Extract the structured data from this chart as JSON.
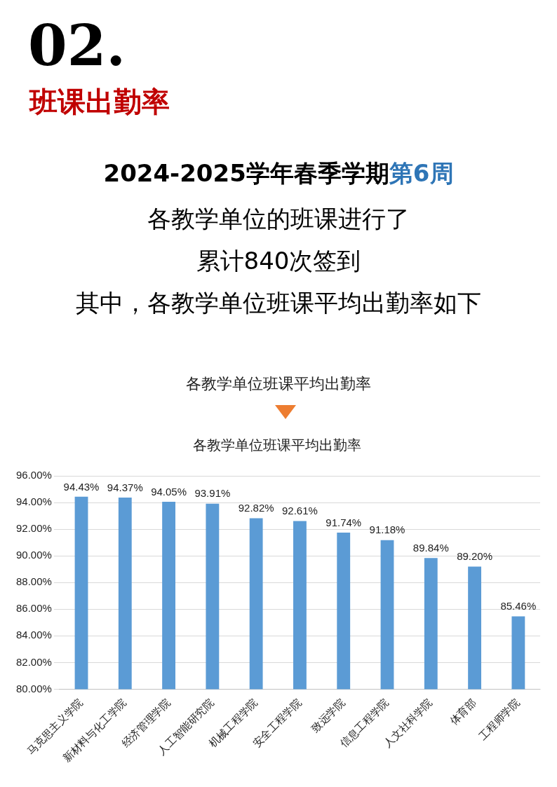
{
  "chart_data": {
    "type": "bar",
    "title": "各教学单位班课平均出勤率",
    "annotations": [
      "02.",
      "班课出勤率",
      "2024-2025学年春季学期",
      "第6周",
      "各教学单位的班课进行了",
      "累计840次签到",
      "其中，各教学单位班课平均出勤率如下",
      "各教学单位班课平均出勤率"
    ],
    "categories": [
      "马克思主义学院",
      "新材料与化工学院",
      "经济管理学院",
      "人工智能研究院",
      "机械工程学院",
      "安全工程学院",
      "致远学院",
      "信息工程学院",
      "人文社科学院",
      "体育部",
      "工程师学院"
    ],
    "values": [
      94.43,
      94.37,
      94.05,
      93.91,
      92.82,
      92.61,
      91.74,
      91.18,
      89.84,
      89.2,
      85.46
    ],
    "value_labels": [
      "94.43%",
      "94.37%",
      "94.05%",
      "93.91%",
      "92.82%",
      "92.61%",
      "91.74%",
      "91.18%",
      "89.84%",
      "89.20%",
      "85.46%"
    ],
    "color": "#5b9bd5",
    "ylim": [
      80,
      96
    ],
    "yticks": [
      {
        "value": 80,
        "label": "80.00%"
      },
      {
        "value": 82,
        "label": "82.00%"
      },
      {
        "value": 84,
        "label": "84.00%"
      },
      {
        "value": 86,
        "label": "86.00%"
      },
      {
        "value": 88,
        "label": "88.00%"
      },
      {
        "value": 90,
        "label": "90.00%"
      },
      {
        "value": 92,
        "label": "92.00%"
      },
      {
        "value": 94,
        "label": "94.00%"
      },
      {
        "value": 96,
        "label": "96.00%"
      }
    ],
    "grid": "y",
    "legend": false
  }
}
